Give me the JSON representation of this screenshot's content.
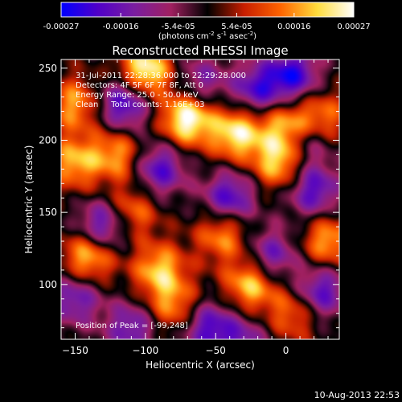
{
  "colorbar": {
    "ticks": [
      "-0.00027",
      "-0.00016",
      "-5.4e-05",
      "5.4e-05",
      "0.00016",
      "0.00027"
    ],
    "tick_values": [
      -0.00027,
      -0.00016,
      -5.4e-05,
      5.4e-05,
      0.00016,
      0.00027
    ],
    "range": [
      -0.00027,
      0.00027
    ],
    "unit_main": "(photons cm",
    "unit_sup1": "-2",
    "unit_mid": " s",
    "unit_sup2": "-1",
    "unit_end": " asec",
    "unit_sup3": "-2",
    "unit_close": ")",
    "colormap": [
      "#0000ff",
      "#5000c8",
      "#7a1ea0",
      "#a02060",
      "#000000",
      "#c81e00",
      "#ff6400",
      "#ffdc3c",
      "#ffffff"
    ]
  },
  "chart_data": {
    "type": "heatmap",
    "title": "Reconstructed RHESSI Image",
    "xlabel": "Heliocentric X (arcsec)",
    "ylabel": "Heliocentric Y (arcsec)",
    "xlim": [
      -160,
      38
    ],
    "ylim": [
      62,
      256
    ],
    "xticks": [
      -150,
      -100,
      -50,
      0
    ],
    "yticks": [
      100,
      150,
      200,
      250
    ],
    "xtick_labels": [
      "−150",
      "−100",
      "−50",
      "0"
    ],
    "ytick_labels": [
      "100",
      "150",
      "200",
      "250"
    ],
    "annotations": [
      "31-Jul-2011 22:28:36.000 to 22:29:28.000",
      "Detectors: 4F 5F 6F 7F 8F, Att 0",
      "Energy Range: 25.0 - 50.0 keV",
      "Clean     Total counts: 1.16E+03"
    ],
    "peak_label": "Position of Peak = [-99,248]",
    "peak": [
      -99,
      248
    ],
    "bright_sources": [
      {
        "x": -70,
        "y": 215,
        "level": 1.0
      },
      {
        "x": -100,
        "y": 248,
        "level": 0.95
      },
      {
        "x": -35,
        "y": 205,
        "level": 0.85
      },
      {
        "x": 0,
        "y": 210,
        "level": 0.7
      },
      {
        "x": -5,
        "y": 185,
        "level": 0.75
      },
      {
        "x": -140,
        "y": 120,
        "level": 0.8
      },
      {
        "x": -25,
        "y": 100,
        "level": 0.75
      },
      {
        "x": -150,
        "y": 185,
        "level": 0.65
      },
      {
        "x": -90,
        "y": 110,
        "level": 0.7
      },
      {
        "x": 25,
        "y": 215,
        "level": 0.6
      },
      {
        "x": 30,
        "y": 130,
        "level": 0.65
      },
      {
        "x": -150,
        "y": 225,
        "level": 0.6
      },
      {
        "x": -120,
        "y": 190,
        "level": 0.6
      },
      {
        "x": -110,
        "y": 150,
        "level": 0.55
      },
      {
        "x": -45,
        "y": 135,
        "level": 0.6
      },
      {
        "x": -80,
        "y": 85,
        "level": 0.55
      },
      {
        "x": 5,
        "y": 80,
        "level": 0.5
      }
    ],
    "dark_sources": [
      {
        "x": -115,
        "y": 225,
        "level": -0.8
      },
      {
        "x": -90,
        "y": 180,
        "level": -0.7
      },
      {
        "x": -40,
        "y": 160,
        "level": -0.75
      },
      {
        "x": 5,
        "y": 245,
        "level": -0.8
      },
      {
        "x": 20,
        "y": 165,
        "level": -0.7
      },
      {
        "x": -130,
        "y": 140,
        "level": -0.8
      },
      {
        "x": -110,
        "y": 70,
        "level": -0.6
      },
      {
        "x": -55,
        "y": 70,
        "level": -0.7
      },
      {
        "x": -10,
        "y": 120,
        "level": -0.6
      },
      {
        "x": 25,
        "y": 95,
        "level": -0.7
      },
      {
        "x": -150,
        "y": 90,
        "level": -0.6
      },
      {
        "x": -20,
        "y": 235,
        "level": -0.7
      },
      {
        "x": 15,
        "y": 200,
        "level": -0.55
      },
      {
        "x": -60,
        "y": 240,
        "level": -0.5
      },
      {
        "x": -30,
        "y": 60,
        "level": -0.5
      }
    ]
  },
  "footer": {
    "date": "10-Aug-2013 22:53"
  }
}
